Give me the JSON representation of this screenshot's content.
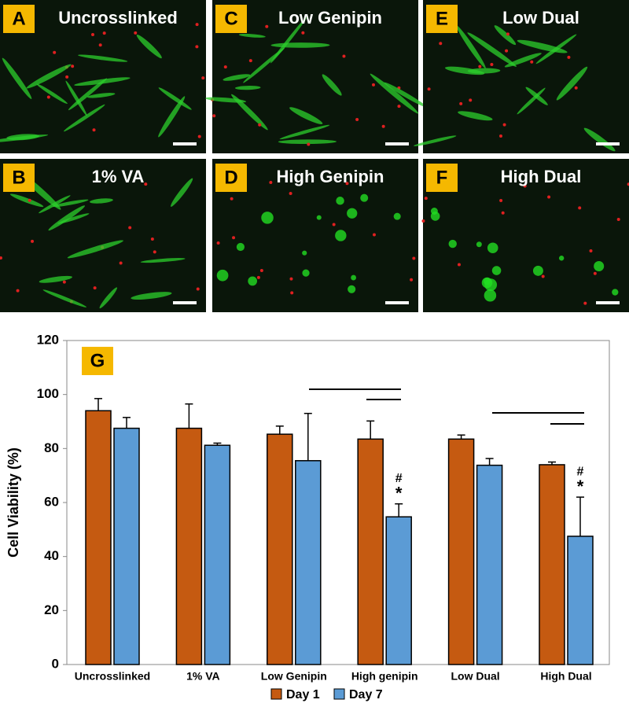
{
  "panels": [
    {
      "letter": "A",
      "title": "Uncrosslinked"
    },
    {
      "letter": "C",
      "title": "Low Genipin"
    },
    {
      "letter": "E",
      "title": "Low Dual"
    },
    {
      "letter": "B",
      "title": "1% VA"
    },
    {
      "letter": "D",
      "title": "High Genipin"
    },
    {
      "letter": "F",
      "title": "High Dual"
    }
  ],
  "chart_data": {
    "type": "bar",
    "panel_label": "G",
    "ylabel": "Cell Viability (%)",
    "categories": [
      "Uncrosslinked",
      "1% VA",
      "Low Genipin",
      "High genipin",
      "Low Dual",
      "High Dual"
    ],
    "series": [
      {
        "name": "Day 1",
        "color": "#c55a11",
        "values": [
          94,
          87.5,
          85.3,
          83.5,
          83.5,
          74
        ],
        "errors": [
          4.5,
          9,
          3,
          6.7,
          1.5,
          1
        ]
      },
      {
        "name": "Day 7",
        "color": "#5b9bd5",
        "values": [
          87.5,
          81.2,
          75.5,
          54.7,
          73.8,
          47.5
        ],
        "errors": [
          4,
          0.8,
          17.5,
          4.8,
          2.5,
          14.5
        ]
      }
    ],
    "annotations": [
      "#",
      "*",
      "#",
      "*"
    ],
    "ylim": [
      0,
      120
    ],
    "yticks": [
      0,
      20,
      40,
      60,
      80,
      100,
      120
    ],
    "grid": false
  }
}
